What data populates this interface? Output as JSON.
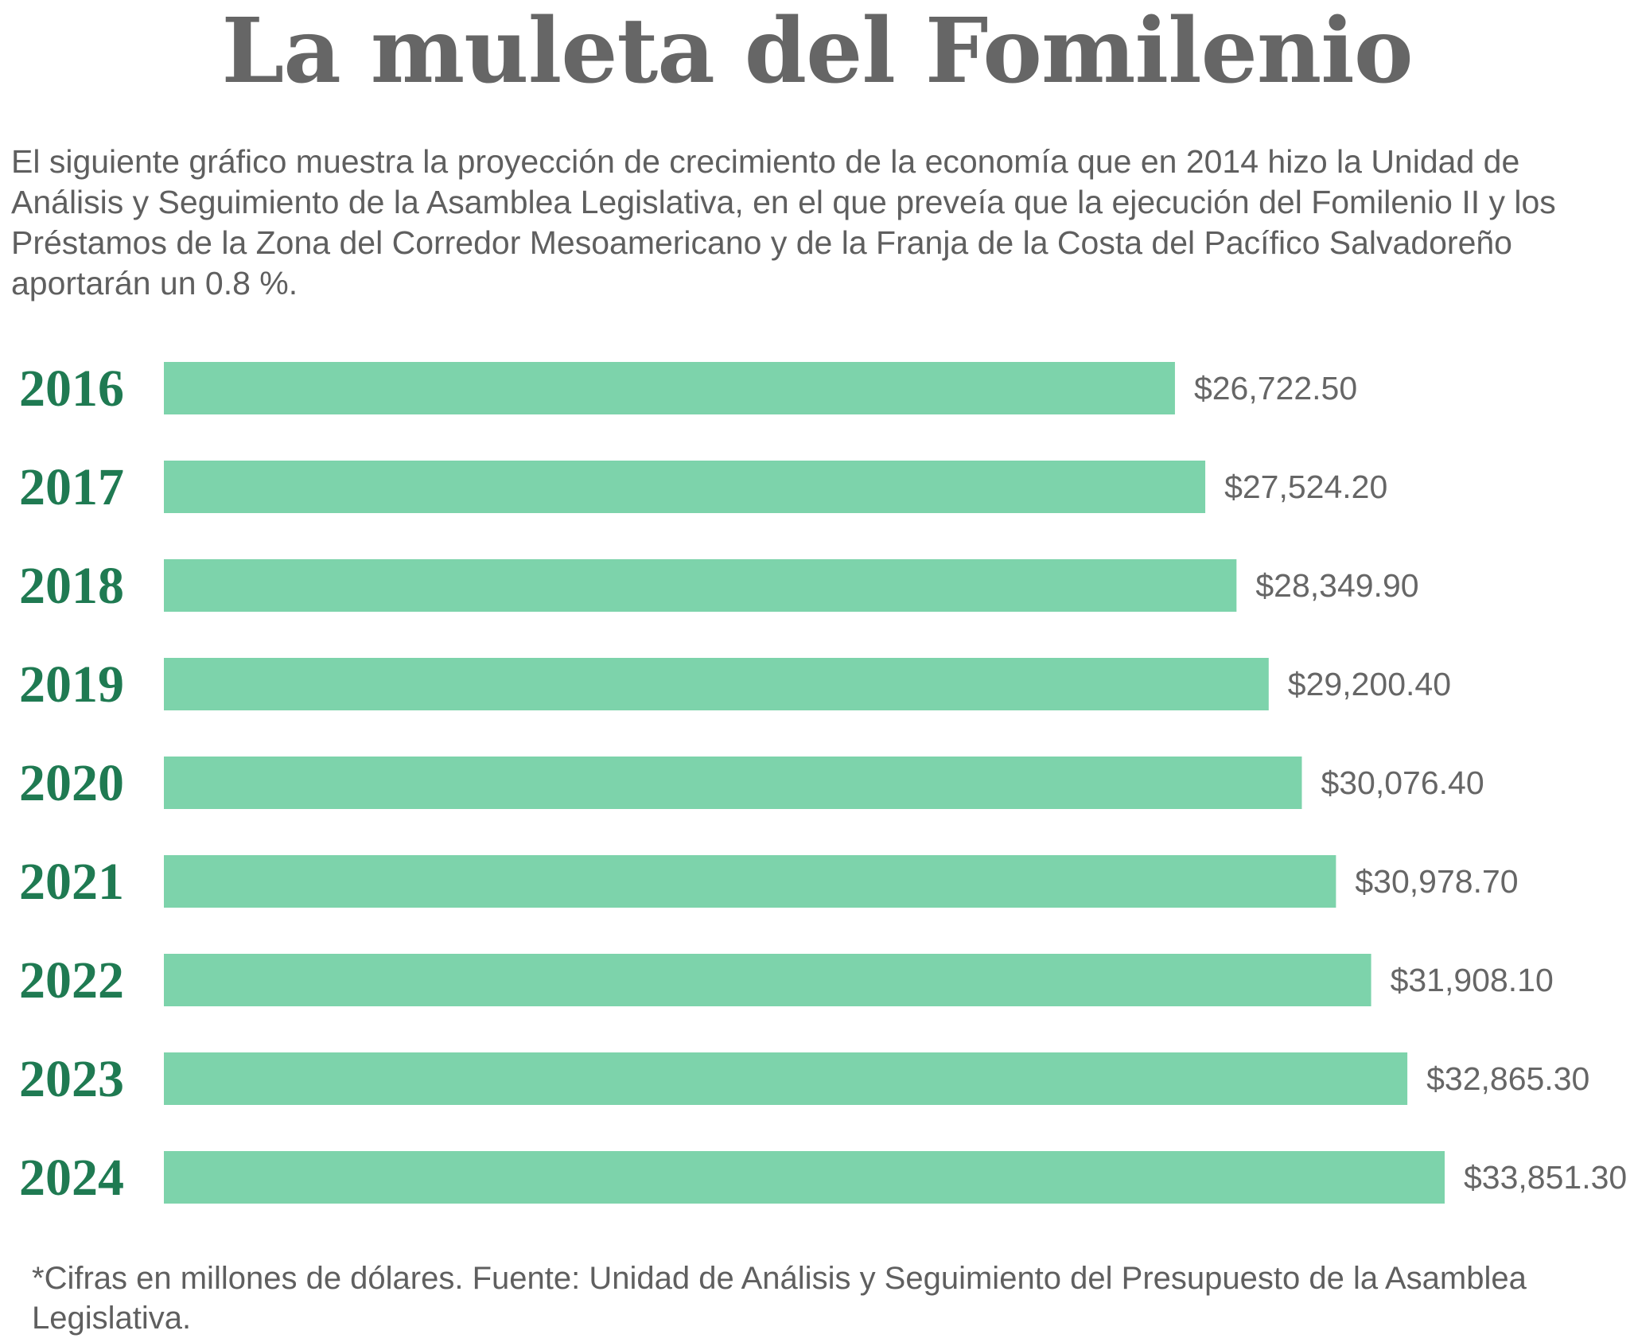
{
  "chart_data": {
    "type": "bar",
    "orientation": "horizontal",
    "title": "La muleta del Fomilenio",
    "subtitle": "El siguiente gráfico muestra la proyección de crecimiento de la economía que en 2014 hizo la Unidad de Análisis y Seguimiento de la Asamblea Legislativa, en el que preveía que la ejecución del Fomilenio II y los Préstamos de la Zona del Corredor Mesoamericano y de la Franja de la Costa del Pacífico Salvadoreño aportarán un 0.8 %.",
    "categories": [
      "2016",
      "2017",
      "2018",
      "2019",
      "2020",
      "2021",
      "2022",
      "2023",
      "2024"
    ],
    "values": [
      26722.5,
      27524.2,
      28349.9,
      29200.4,
      30076.4,
      30978.7,
      31908.1,
      32865.3,
      33851.3
    ],
    "value_labels": [
      "$26,722.50",
      "$27,524.20",
      "$28,349.90",
      "$29,200.40",
      "$30,076.40",
      "$30,978.70",
      "$31,908.10",
      "$32,865.30",
      "$33,851.30"
    ],
    "xlim": [
      0,
      33851.3
    ],
    "grid": false,
    "legend": "none",
    "bar_color": "#7dd3ab",
    "label_color": "#1f7a52"
  },
  "footnote": "*Cifras en millones de dólares. Fuente: Unidad de Análisis y Seguimiento del Presupuesto de la Asamblea Legislativa."
}
